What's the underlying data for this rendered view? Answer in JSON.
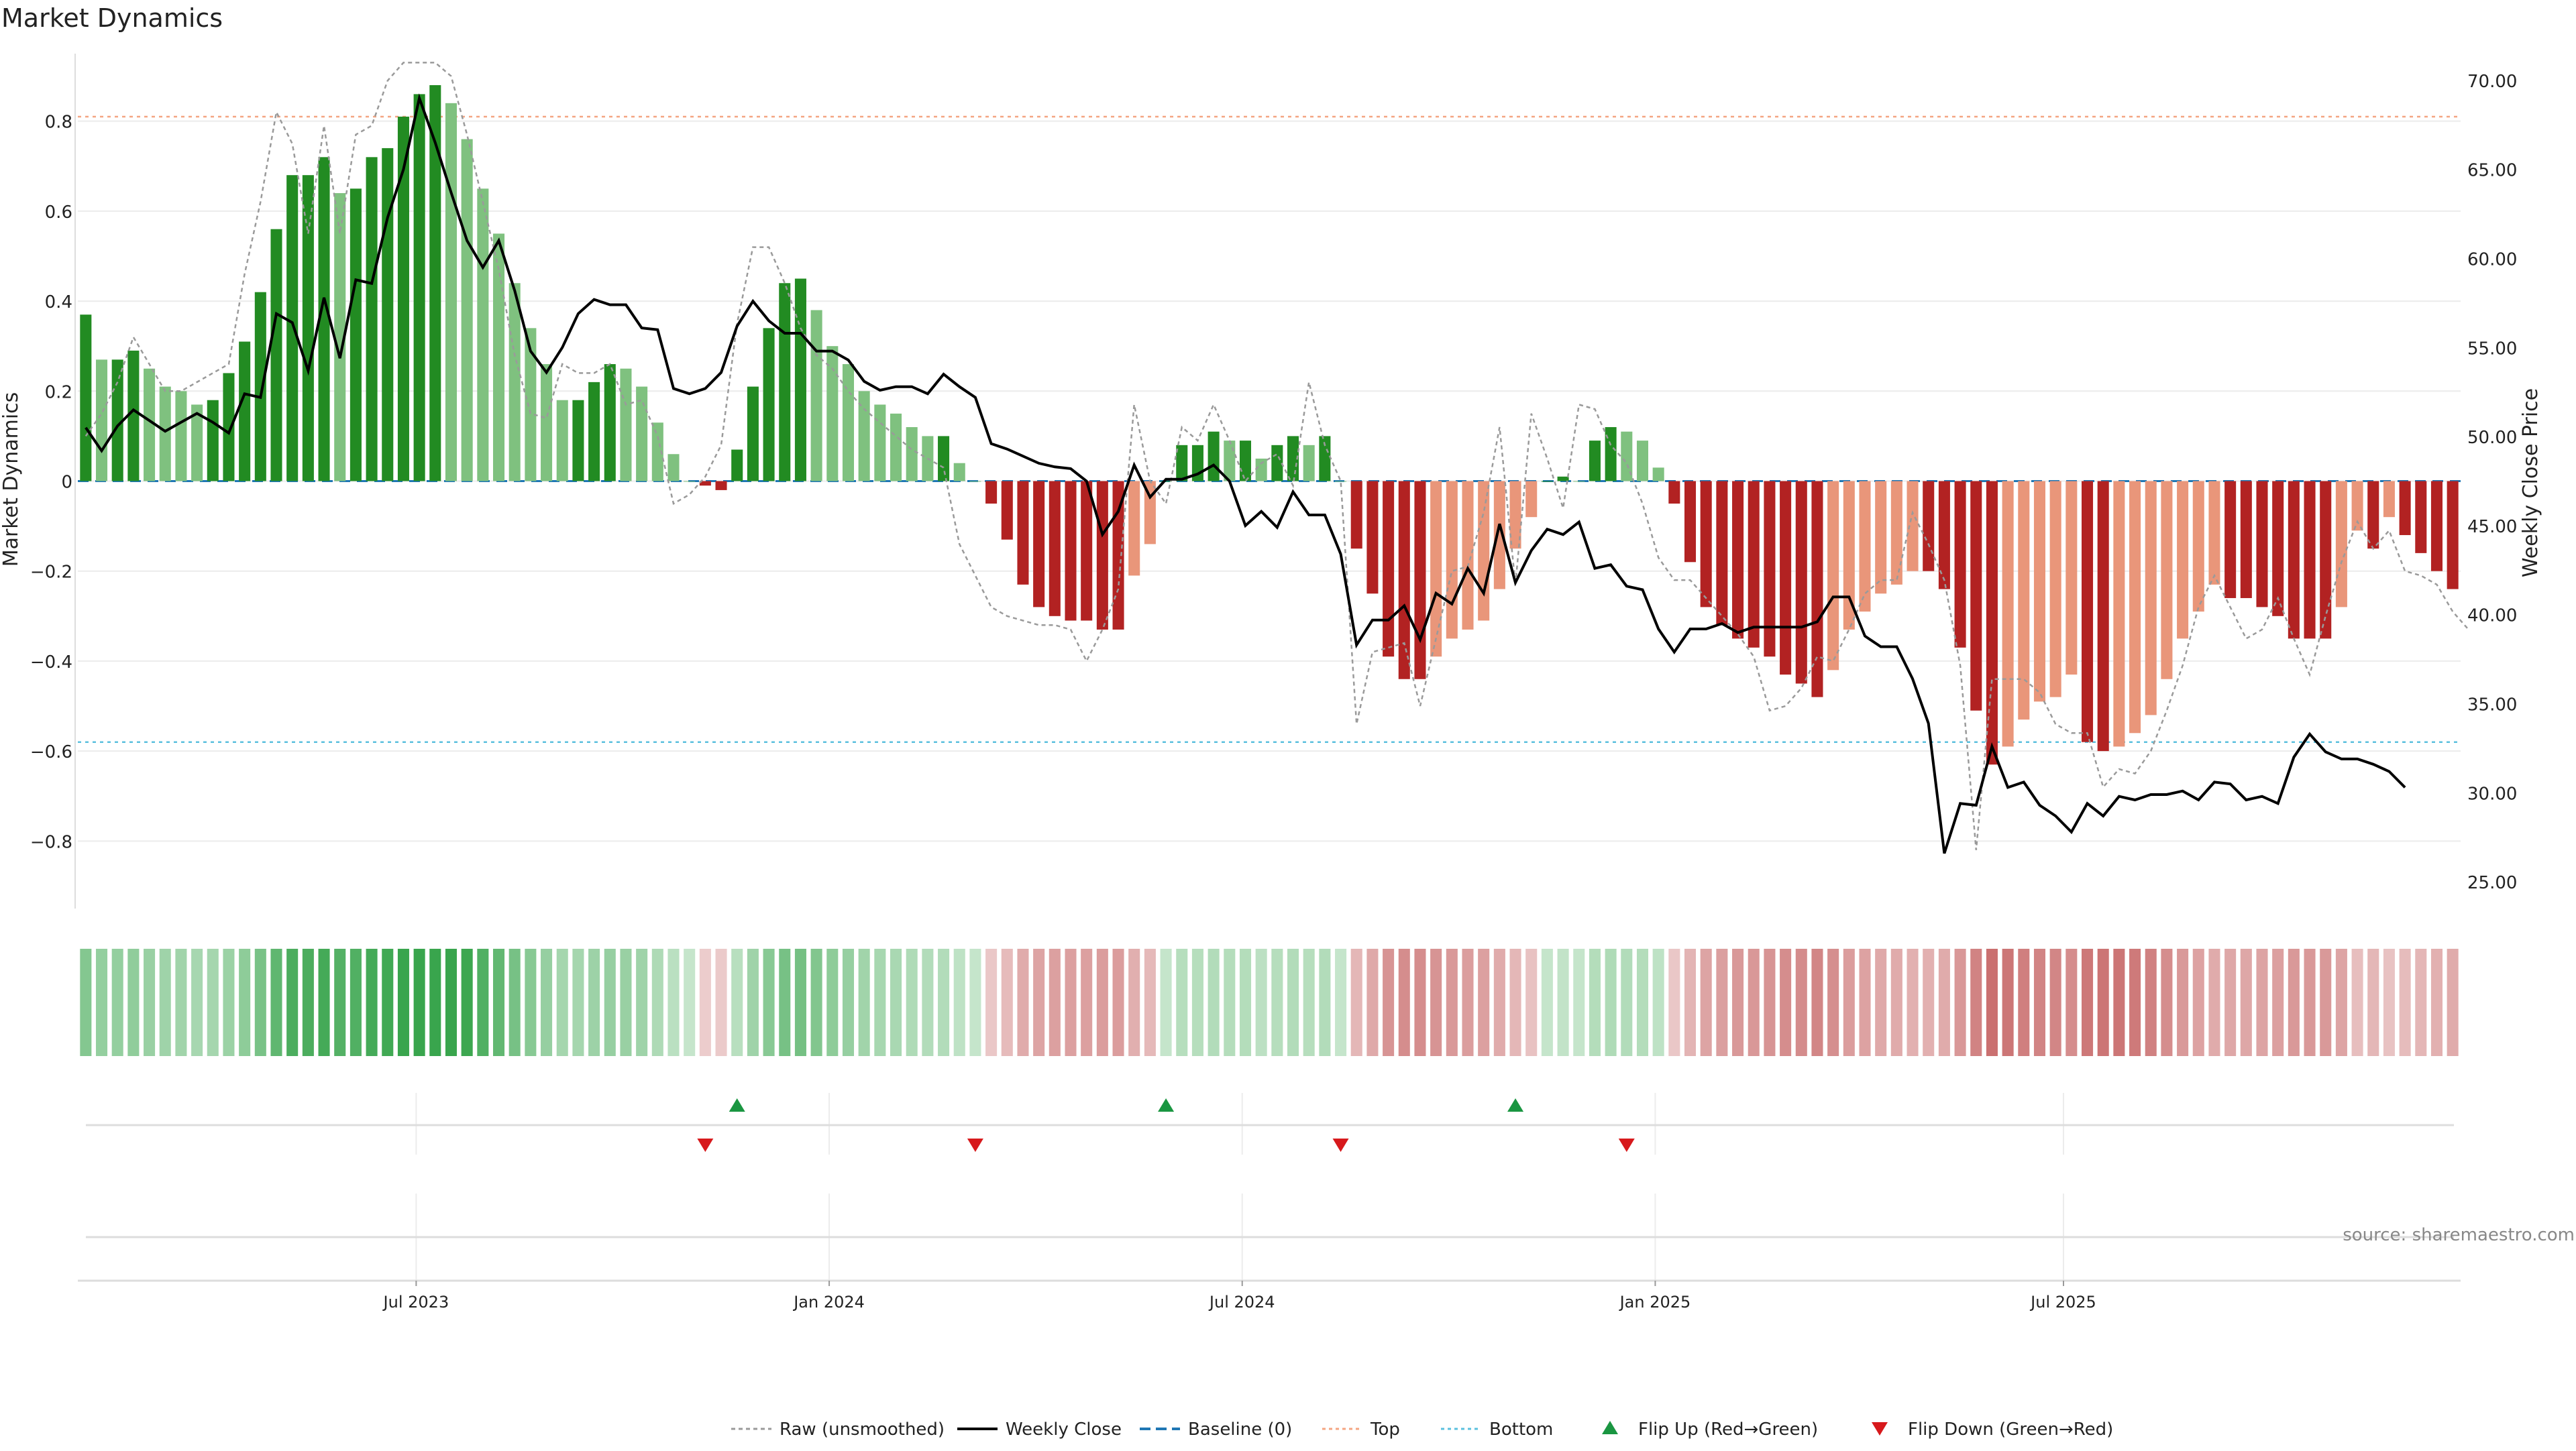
{
  "title": "Market Dynamics",
  "source": "source: sharemaestro.com",
  "colors": {
    "strong_green": "#228b22",
    "light_green": "#7fc17f",
    "strong_red": "#b22222",
    "light_red": "#e9967a",
    "close_line": "#000000",
    "raw_line": "#9a9a9a",
    "baseline": "#1f77b4",
    "top_line": "#f4a582",
    "bottom_line": "#5bc0de",
    "flip_up": "#1a9641",
    "flip_down": "#d7191c"
  },
  "legend": {
    "raw": "Raw (unsmoothed)",
    "close": "Weekly Close",
    "baseline": "Baseline (0)",
    "top": "Top",
    "bottom": "Bottom",
    "flip_up": "Flip Up (Red→Green)",
    "flip_down": "Flip Down (Green→Red)"
  },
  "chart_data": {
    "type": "bar",
    "ylabel": "Market Dynamics",
    "y2label": "Weekly Close Price",
    "ylim": [
      -0.95,
      0.95
    ],
    "y2lim": [
      23.5,
      71.5
    ],
    "yticks": [
      "0.8",
      "0.6",
      "0.4",
      "0.2",
      "0",
      "−0.2",
      "−0.4",
      "−0.6",
      "−0.8"
    ],
    "y2ticks": [
      "70.00",
      "65.00",
      "60.00",
      "55.00",
      "50.00",
      "45.00",
      "40.00",
      "35.00",
      "30.00",
      "25.00"
    ],
    "xticks": [
      "Jul 2023",
      "Jan 2024",
      "Jul 2024",
      "Jan 2025",
      "Jul 2025"
    ],
    "top": 0.81,
    "bottom": -0.58,
    "baseline": 0,
    "grid": true,
    "legend_position": "bottom-center",
    "dynamics": [
      0.37,
      0.27,
      0.27,
      0.29,
      0.25,
      0.21,
      0.2,
      0.17,
      0.18,
      0.24,
      0.31,
      0.42,
      0.56,
      0.68,
      0.68,
      0.72,
      0.64,
      0.65,
      0.72,
      0.74,
      0.81,
      0.86,
      0.88,
      0.84,
      0.76,
      0.65,
      0.55,
      0.44,
      0.34,
      0.26,
      0.18,
      0.18,
      0.22,
      0.26,
      0.25,
      0.21,
      0.13,
      0.06,
      0.0,
      -0.01,
      -0.02,
      0.07,
      0.21,
      0.34,
      0.44,
      0.45,
      0.38,
      0.3,
      0.26,
      0.2,
      0.17,
      0.15,
      0.12,
      0.1,
      0.1,
      0.04,
      0.0,
      -0.05,
      -0.13,
      -0.23,
      -0.28,
      -0.3,
      -0.31,
      -0.31,
      -0.33,
      -0.33,
      -0.21,
      -0.14,
      0.0,
      0.08,
      0.08,
      0.11,
      0.09,
      0.09,
      0.05,
      0.08,
      0.1,
      0.08,
      0.1,
      0.0,
      -0.15,
      -0.25,
      -0.39,
      -0.44,
      -0.44,
      -0.39,
      -0.35,
      -0.33,
      -0.31,
      -0.24,
      -0.15,
      -0.08,
      0.0,
      0.01,
      0.0,
      0.09,
      0.12,
      0.11,
      0.09,
      0.03,
      -0.05,
      -0.18,
      -0.28,
      -0.32,
      -0.35,
      -0.37,
      -0.39,
      -0.43,
      -0.45,
      -0.48,
      -0.42,
      -0.33,
      -0.29,
      -0.25,
      -0.23,
      -0.2,
      -0.2,
      -0.24,
      -0.37,
      -0.51,
      -0.63,
      -0.59,
      -0.53,
      -0.49,
      -0.48,
      -0.43,
      -0.58,
      -0.6,
      -0.59,
      -0.56,
      -0.52,
      -0.44,
      -0.35,
      -0.29,
      -0.23,
      -0.26,
      -0.26,
      -0.28,
      -0.3,
      -0.35,
      -0.35,
      -0.35,
      -0.28,
      -0.11,
      -0.15,
      -0.08,
      -0.12,
      -0.16,
      -0.2,
      -0.24
    ],
    "close": [
      50.5,
      49.2,
      50.6,
      51.5,
      50.9,
      50.3,
      50.8,
      51.3,
      50.8,
      50.2,
      52.4,
      52.2,
      56.9,
      56.4,
      53.7,
      57.8,
      54.4,
      58.8,
      58.6,
      62.3,
      65.0,
      69.0,
      66.5,
      63.7,
      61.0,
      59.5,
      61.0,
      58.2,
      54.8,
      53.6,
      55.0,
      56.9,
      57.7,
      57.4,
      57.4,
      56.1,
      56.0,
      52.7,
      52.4,
      52.7,
      53.6,
      56.2,
      57.6,
      56.5,
      55.8,
      55.8,
      54.8,
      54.8,
      54.3,
      53.1,
      52.6,
      52.8,
      52.8,
      52.4,
      53.5,
      52.8,
      52.2,
      49.6,
      49.3,
      48.9,
      48.5,
      48.3,
      48.2,
      47.5,
      44.5,
      45.8,
      48.4,
      46.6,
      47.6,
      47.6,
      47.9,
      48.4,
      47.5,
      45.0,
      45.8,
      44.9,
      46.9,
      45.6,
      45.6,
      43.4,
      38.3,
      39.7,
      39.7,
      40.5,
      38.6,
      41.2,
      40.6,
      42.6,
      41.2,
      45.1,
      41.8,
      43.6,
      44.8,
      44.5,
      45.2,
      42.6,
      42.8,
      41.6,
      41.4,
      39.2,
      37.9,
      39.2,
      39.2,
      39.5,
      39.0,
      39.3,
      39.3,
      39.3,
      39.3,
      39.6,
      41.0,
      41.0,
      38.8,
      38.2,
      38.2,
      36.4,
      33.9,
      26.6,
      29.4,
      29.3,
      32.6,
      30.3,
      30.6,
      29.3,
      28.7,
      27.8,
      29.4,
      28.7,
      29.8,
      29.6,
      29.9,
      29.9,
      30.1,
      29.6,
      30.6,
      30.5,
      29.6,
      29.8,
      29.4,
      32.0,
      33.3,
      32.3,
      31.9,
      31.9,
      31.6,
      31.2,
      30.3
    ],
    "raw": [
      0.1,
      0.15,
      0.22,
      0.32,
      0.26,
      0.2,
      0.2,
      0.22,
      0.24,
      0.26,
      0.46,
      0.62,
      0.82,
      0.75,
      0.55,
      0.79,
      0.55,
      0.77,
      0.79,
      0.89,
      0.93,
      0.93,
      0.93,
      0.9,
      0.77,
      0.62,
      0.47,
      0.28,
      0.15,
      0.14,
      0.26,
      0.24,
      0.24,
      0.26,
      0.17,
      0.18,
      0.1,
      -0.05,
      -0.03,
      0.01,
      0.08,
      0.35,
      0.52,
      0.52,
      0.44,
      0.34,
      0.28,
      0.25,
      0.2,
      0.16,
      0.13,
      0.1,
      0.07,
      0.05,
      0.03,
      -0.14,
      -0.21,
      -0.28,
      -0.3,
      -0.31,
      -0.32,
      -0.32,
      -0.33,
      -0.4,
      -0.33,
      -0.24,
      0.17,
      0.0,
      -0.05,
      0.12,
      0.09,
      0.17,
      0.09,
      0.0,
      0.04,
      0.06,
      -0.01,
      0.22,
      0.08,
      0.0,
      -0.54,
      -0.38,
      -0.37,
      -0.36,
      -0.5,
      -0.35,
      -0.2,
      -0.19,
      -0.07,
      0.12,
      -0.23,
      0.15,
      0.05,
      -0.06,
      0.17,
      0.16,
      0.08,
      0.04,
      -0.05,
      -0.17,
      -0.22,
      -0.22,
      -0.26,
      -0.3,
      -0.34,
      -0.39,
      -0.51,
      -0.5,
      -0.46,
      -0.39,
      -0.4,
      -0.33,
      -0.25,
      -0.22,
      -0.22,
      -0.07,
      -0.14,
      -0.22,
      -0.41,
      -0.82,
      -0.44,
      -0.44,
      -0.44,
      -0.47,
      -0.54,
      -0.56,
      -0.56,
      -0.68,
      -0.64,
      -0.65,
      -0.6,
      -0.51,
      -0.41,
      -0.28,
      -0.21,
      -0.28,
      -0.35,
      -0.33,
      -0.26,
      -0.35,
      -0.43,
      -0.3,
      -0.18,
      -0.09,
      -0.15,
      -0.11,
      -0.2,
      -0.21,
      -0.23,
      -0.29,
      -0.33
    ]
  },
  "flips": {
    "up": [
      41,
      68,
      90
    ],
    "down": [
      39,
      56,
      79,
      97
    ]
  }
}
